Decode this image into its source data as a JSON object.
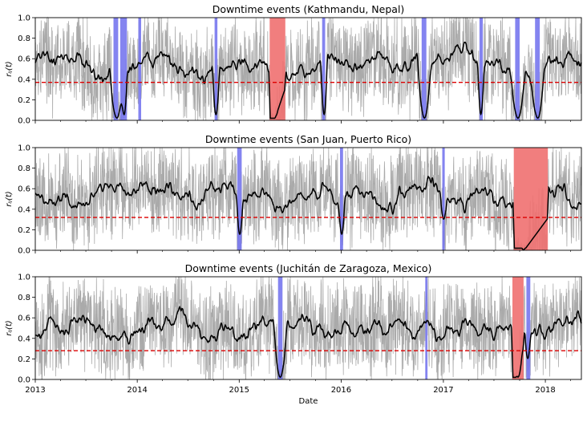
{
  "chart_data": [
    {
      "type": "line",
      "title": "Downtime events (Kathmandu, Nepal)",
      "xlabel": "",
      "ylabel": "r_{ij}(t)",
      "xlim": [
        "2013-01-01",
        "2018-05-10"
      ],
      "ylim": [
        0,
        1.0
      ],
      "yticks": [
        "0.0",
        "0.2",
        "0.4",
        "0.6",
        "0.8",
        "1.0"
      ],
      "threshold": 0.37,
      "baseline": 0.52,
      "series": [
        {
          "name": "",
          "color": "#aaaaaa",
          "style": "raw"
        },
        {
          "name": "",
          "color": "#000000",
          "style": "smoothed"
        }
      ],
      "events": [
        {
          "start": "2013-10-08",
          "end": "2013-10-25",
          "color": "#7777ee"
        },
        {
          "start": "2013-11-01",
          "end": "2013-11-25",
          "color": "#7777ee"
        },
        {
          "start": "2014-01-05",
          "end": "2014-01-15",
          "color": "#7777ee"
        },
        {
          "start": "2014-10-05",
          "end": "2014-10-15",
          "color": "#7777ee"
        },
        {
          "start": "2015-04-20",
          "end": "2015-06-15",
          "color": "#f07070"
        },
        {
          "start": "2015-10-25",
          "end": "2015-11-05",
          "color": "#7777ee"
        },
        {
          "start": "2016-10-15",
          "end": "2016-11-01",
          "color": "#7777ee"
        },
        {
          "start": "2017-05-10",
          "end": "2017-05-22",
          "color": "#7777ee"
        },
        {
          "start": "2017-09-15",
          "end": "2017-10-01",
          "color": "#7777ee"
        },
        {
          "start": "2017-11-25",
          "end": "2017-12-12",
          "color": "#7777ee"
        }
      ],
      "dips": [
        {
          "date": "2013-10-20",
          "min": 0.02
        },
        {
          "date": "2013-11-15",
          "min": 0.05
        },
        {
          "date": "2014-10-10",
          "min": 0.05
        },
        {
          "date": "2015-05-15",
          "min": 0.05
        },
        {
          "date": "2015-11-01",
          "min": 0.05
        },
        {
          "date": "2016-10-25",
          "min": 0.02
        },
        {
          "date": "2017-05-15",
          "min": 0.05
        },
        {
          "date": "2017-09-25",
          "min": 0.02
        },
        {
          "date": "2017-12-05",
          "min": 0.02
        }
      ],
      "seed": 7
    },
    {
      "type": "line",
      "title": "Downtime events (San Juan, Puerto Rico)",
      "xlabel": "",
      "ylabel": "r_{ij}(t)",
      "xlim": [
        "2013-01-01",
        "2018-05-10"
      ],
      "ylim": [
        0,
        1.0
      ],
      "yticks": [
        "0.0",
        "0.2",
        "0.4",
        "0.6",
        "0.8",
        "1.0"
      ],
      "threshold": 0.32,
      "baseline": 0.52,
      "series": [
        {
          "name": "",
          "color": "#aaaaaa",
          "style": "raw"
        },
        {
          "name": "",
          "color": "#000000",
          "style": "smoothed"
        }
      ],
      "events": [
        {
          "start": "2014-12-25",
          "end": "2015-01-10",
          "color": "#7777ee"
        },
        {
          "start": "2015-12-28",
          "end": "2016-01-08",
          "color": "#7777ee"
        },
        {
          "start": "2016-12-28",
          "end": "2017-01-06",
          "color": "#7777ee"
        },
        {
          "start": "2017-09-10",
          "end": "2018-01-10",
          "color": "#f07070"
        }
      ],
      "dips": [
        {
          "date": "2015-01-03",
          "min": 0.15
        },
        {
          "date": "2016-01-03",
          "min": 0.15
        },
        {
          "date": "2017-01-02",
          "min": 0.3
        },
        {
          "date": "2017-10-15",
          "min": 0.0
        }
      ],
      "seed": 21
    },
    {
      "type": "line",
      "title": "Downtime events (Juchitán de Zaragoza, Mexico)",
      "xlabel": "Date",
      "ylabel": "r_{ij}(t)",
      "xlim": [
        "2013-01-01",
        "2018-05-10"
      ],
      "ylim": [
        0,
        1.0
      ],
      "yticks": [
        "0.0",
        "0.2",
        "0.4",
        "0.6",
        "0.8",
        "1.0"
      ],
      "xticks": [
        "2013",
        "2014",
        "2015",
        "2016",
        "2017",
        "2018"
      ],
      "threshold": 0.28,
      "baseline": 0.5,
      "series": [
        {
          "name": "",
          "color": "#aaaaaa",
          "style": "raw"
        },
        {
          "name": "",
          "color": "#000000",
          "style": "smoothed"
        }
      ],
      "events": [
        {
          "start": "2015-05-20",
          "end": "2015-06-05",
          "color": "#7777ee"
        },
        {
          "start": "2016-10-28",
          "end": "2016-11-05",
          "color": "#7777ee"
        },
        {
          "start": "2017-09-05",
          "end": "2017-10-15",
          "color": "#f07070"
        },
        {
          "start": "2017-10-25",
          "end": "2017-11-08",
          "color": "#7777ee"
        }
      ],
      "dips": [
        {
          "date": "2015-05-28",
          "min": 0.02
        },
        {
          "date": "2017-09-25",
          "min": 0.02
        },
        {
          "date": "2017-10-30",
          "min": 0.2
        }
      ],
      "seed": 43
    }
  ]
}
